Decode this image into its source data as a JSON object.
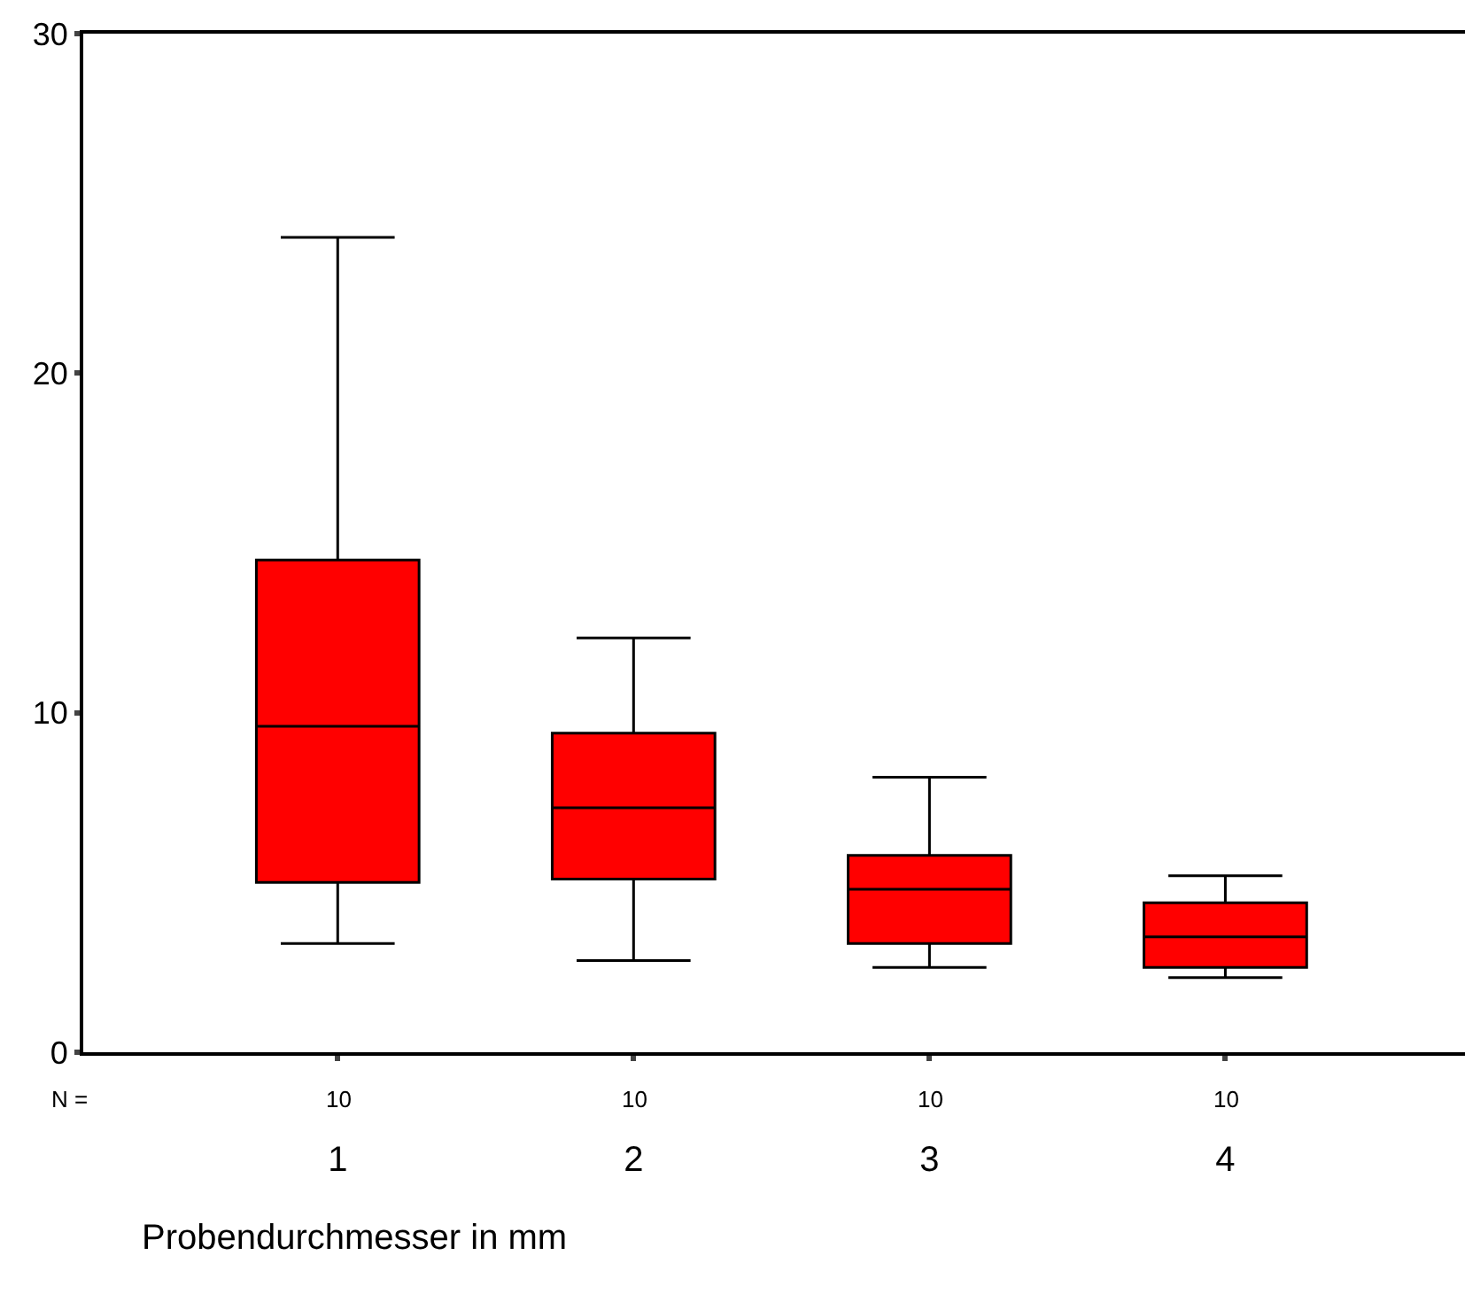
{
  "chart_data": {
    "type": "box",
    "xlabel": "Probendurchmesser in mm",
    "categories": [
      "1",
      "2",
      "3",
      "4"
    ],
    "boxes": [
      {
        "low": 3.2,
        "q1": 5.0,
        "median": 9.6,
        "q3": 14.5,
        "high": 24.0
      },
      {
        "low": 2.7,
        "q1": 5.1,
        "median": 7.2,
        "q3": 9.4,
        "high": 12.2
      },
      {
        "low": 2.5,
        "q1": 3.2,
        "median": 4.8,
        "q3": 5.8,
        "high": 8.1
      },
      {
        "low": 2.2,
        "q1": 2.5,
        "median": 3.4,
        "q3": 4.4,
        "high": 5.2
      }
    ],
    "color": "#ff0000",
    "ylim": [
      0,
      30
    ],
    "yticks": [
      0,
      10,
      20,
      30
    ],
    "grid": false,
    "legend": false,
    "annotations": [
      "N =",
      "10",
      "10",
      "10",
      "10"
    ]
  }
}
